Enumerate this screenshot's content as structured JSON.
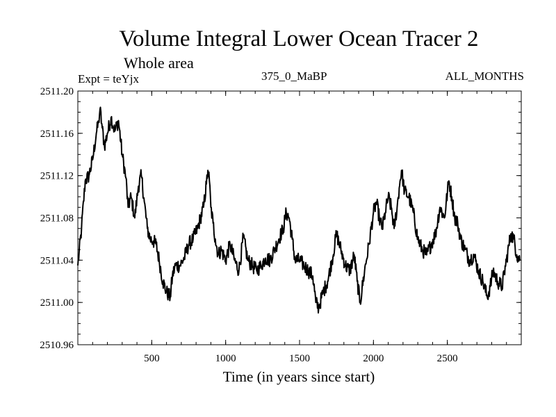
{
  "header": {
    "title": "Volume Integral Lower Ocean Tracer 2",
    "subtitle": "Whole area",
    "experiment": "Expt = teYjx",
    "run_label": "375_0_MaBP",
    "months": "ALL_MONTHS"
  },
  "colors": {
    "line": "#000000",
    "background": "#ffffff"
  },
  "chart_data": {
    "type": "line",
    "title": "Volume Integral Lower Ocean Tracer 2",
    "subtitle": "Whole area",
    "xlabel": "Time (in years since start)",
    "ylabel": "",
    "xlim": [
      0,
      3000
    ],
    "ylim": [
      2510.96,
      2511.2
    ],
    "grid": false,
    "legend": "none",
    "x_ticks": [
      500,
      1000,
      1500,
      2000,
      2500
    ],
    "x_tick_labels": [
      "500",
      "1000",
      "1500",
      "2000",
      "2500"
    ],
    "y_ticks": [
      2510.96,
      2511.0,
      2511.04,
      2511.08,
      2511.12,
      2511.16,
      2511.2
    ],
    "y_tick_labels": [
      "2510.96",
      "2511.00",
      "2511.04",
      "2511.08",
      "2511.12",
      "2511.16",
      "2511.20"
    ],
    "series": [
      {
        "name": "Volume Integral Lower Ocean Tracer 2",
        "x": [
          0,
          25,
          50,
          75,
          100,
          125,
          140,
          150,
          165,
          180,
          200,
          225,
          250,
          275,
          300,
          325,
          340,
          360,
          385,
          410,
          430,
          450,
          470,
          490,
          510,
          530,
          550,
          575,
          600,
          625,
          640,
          660,
          690,
          720,
          750,
          780,
          810,
          830,
          850,
          870,
          880,
          890,
          900,
          915,
          930,
          950,
          970,
          1000,
          1030,
          1060,
          1090,
          1120,
          1150,
          1180,
          1210,
          1240,
          1270,
          1300,
          1330,
          1360,
          1390,
          1410,
          1430,
          1450,
          1470,
          1500,
          1530,
          1560,
          1590,
          1610,
          1630,
          1660,
          1690,
          1720,
          1750,
          1780,
          1810,
          1840,
          1870,
          1890,
          1910,
          1940,
          1970,
          2000,
          2020,
          2040,
          2060,
          2080,
          2100,
          2120,
          2140,
          2160,
          2180,
          2190,
          2210,
          2240,
          2270,
          2300,
          2330,
          2360,
          2390,
          2420,
          2450,
          2480,
          2510,
          2530,
          2550,
          2570,
          2590,
          2620,
          2650,
          2680,
          2710,
          2740,
          2770,
          2790,
          2810,
          2840,
          2870,
          2900,
          2930,
          2950,
          2970,
          2990
        ],
        "values": [
          2511.035,
          2511.07,
          2511.115,
          2511.12,
          2511.135,
          2511.16,
          2511.17,
          2511.183,
          2511.165,
          2511.148,
          2511.16,
          2511.175,
          2511.162,
          2511.172,
          2511.14,
          2511.118,
          2511.09,
          2511.1,
          2511.08,
          2511.11,
          2511.12,
          2511.095,
          2511.07,
          2511.06,
          2511.058,
          2511.055,
          2511.04,
          2511.02,
          2511.01,
          2511.005,
          2511.025,
          2511.035,
          2511.035,
          2511.042,
          2511.055,
          2511.06,
          2511.07,
          2511.08,
          2511.09,
          2511.112,
          2511.125,
          2511.115,
          2511.09,
          2511.075,
          2511.06,
          2511.045,
          2511.05,
          2511.04,
          2511.055,
          2511.04,
          2511.03,
          2511.062,
          2511.04,
          2511.035,
          2511.03,
          2511.035,
          2511.042,
          2511.04,
          2511.05,
          2511.06,
          2511.07,
          2511.085,
          2511.08,
          2511.06,
          2511.04,
          2511.04,
          2511.035,
          2511.03,
          2511.025,
          2511.0,
          2510.995,
          2511.01,
          2511.02,
          2511.04,
          2511.065,
          2511.05,
          2511.035,
          2511.03,
          2511.045,
          2511.02,
          2511.0,
          2511.03,
          2511.055,
          2511.085,
          2511.095,
          2511.08,
          2511.07,
          2511.085,
          2511.1,
          2511.09,
          2511.07,
          2511.09,
          2511.115,
          2511.125,
          2511.105,
          2511.1,
          2511.085,
          2511.06,
          2511.05,
          2511.045,
          2511.055,
          2511.065,
          2511.09,
          2511.08,
          2511.115,
          2511.1,
          2511.08,
          2511.075,
          2511.06,
          2511.05,
          2511.04,
          2511.045,
          2511.03,
          2511.02,
          2511.005,
          2511.015,
          2511.03,
          2511.02,
          2511.015,
          2511.04,
          2511.065,
          2511.06,
          2511.045,
          2511.04
        ]
      }
    ]
  },
  "axes": {
    "xlabel": "Time (in years since start)"
  }
}
